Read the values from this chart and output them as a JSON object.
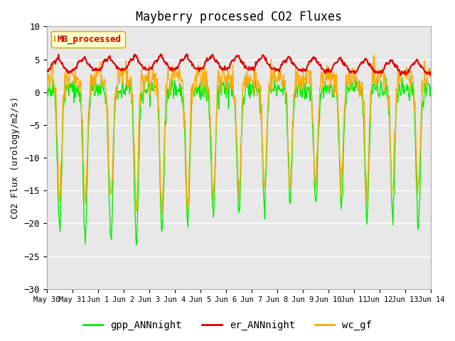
{
  "title": "Mayberry processed CO2 Fluxes",
  "ylabel": "CO2 Flux (urology/m2/s)",
  "ylim": [
    -30,
    10
  ],
  "yticks": [
    -30,
    -25,
    -20,
    -15,
    -10,
    -5,
    0,
    5,
    10
  ],
  "bg_color": "#e8e8e8",
  "fig_bg": "#ffffff",
  "legend_label": "MB_processed",
  "legend_text_color": "#cc0000",
  "legend_bg": "#ffffcc",
  "legend_border": "#ccaa00",
  "line_colors": {
    "gpp": "#00ee00",
    "er": "#dd0000",
    "wc": "#ffaa00"
  },
  "line_labels": [
    "gpp_ANNnight",
    "er_ANNnight",
    "wc_gf"
  ],
  "line_widths": {
    "gpp": 1.0,
    "er": 1.5,
    "wc": 1.0
  },
  "n_days": 15,
  "points_per_day": 48,
  "x_tick_labels": [
    "May 30",
    "May 31",
    "Jun 1",
    "Jun 2",
    "Jun 3",
    "Jun 4",
    "Jun 5",
    "Jun 6",
    "Jun 7",
    "Jun 8",
    "Jun 9",
    "Jun 10",
    "Jun 11",
    "Jun 12",
    "Jun 13",
    "Jun 14"
  ],
  "font_family": "monospace"
}
